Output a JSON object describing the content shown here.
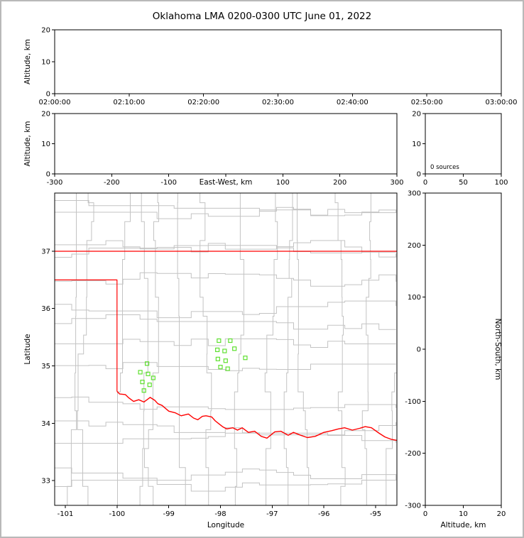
{
  "title": "Oklahoma LMA 0200-0300 UTC June 01, 2022",
  "colors": {
    "state_border": "#ff0000",
    "county_line": "#c3c3c3",
    "station_marker": "#5fe030",
    "axis": "#000000",
    "page_border": "#b9b9b9",
    "background": "#ffffff"
  },
  "chart_data": [
    {
      "id": "time_height",
      "type": "scatter",
      "ylabel": "Altitude, km",
      "ylim": [
        0,
        20
      ],
      "yticks": [
        0,
        10,
        20
      ],
      "xtick_labels": [
        "02:00:00",
        "02:10:00",
        "02:20:00",
        "02:30:00",
        "02:40:00",
        "02:50:00",
        "03:00:00"
      ],
      "points": []
    },
    {
      "id": "ew_height",
      "type": "scatter",
      "xlabel": "East-West, km",
      "ylabel": "Altitude, km",
      "xlim": [
        -300,
        300
      ],
      "xticks": [
        -300,
        -200,
        -100,
        0,
        100,
        200,
        300
      ],
      "xtick_hidden_labels": [
        0
      ],
      "ylim": [
        0,
        20
      ],
      "yticks": [
        0,
        10,
        20
      ],
      "points": []
    },
    {
      "id": "alt_histogram",
      "type": "line",
      "annotation": "0 sources",
      "xlim": [
        0,
        100
      ],
      "xticks": [
        0,
        50,
        100
      ],
      "ylim": [
        0,
        20
      ],
      "yticks": [
        0,
        10,
        20
      ],
      "points": []
    },
    {
      "id": "map",
      "type": "scatter",
      "xlabel": "Longitude",
      "ylabel": "Latitude",
      "xlim": [
        -101.206,
        -94.588
      ],
      "ylim": [
        32.567,
        38.015
      ],
      "xticks": [
        -101,
        -100,
        -99,
        -98,
        -97,
        -96,
        -95
      ],
      "yticks": [
        33,
        34,
        35,
        36,
        37
      ],
      "stations": [
        [
          -98.03,
          35.44
        ],
        [
          -97.81,
          35.44
        ],
        [
          -98.06,
          35.28
        ],
        [
          -97.92,
          35.26
        ],
        [
          -97.73,
          35.3
        ],
        [
          -98.05,
          35.12
        ],
        [
          -97.9,
          35.09
        ],
        [
          -98.0,
          34.98
        ],
        [
          -97.86,
          34.95
        ],
        [
          -97.52,
          35.14
        ],
        [
          -99.42,
          35.04
        ],
        [
          -99.55,
          34.89
        ],
        [
          -99.4,
          34.86
        ],
        [
          -99.3,
          34.79
        ],
        [
          -99.51,
          34.72
        ],
        [
          -99.37,
          34.67
        ],
        [
          -99.48,
          34.57
        ]
      ],
      "state_border": {
        "kansas_line": [
          [
            -101.21,
            37.0
          ],
          [
            -94.58,
            37.0
          ]
        ],
        "panhandle": [
          [
            -101.21,
            36.5
          ],
          [
            -100.0,
            36.5
          ],
          [
            -100.0,
            34.555
          ]
        ],
        "red_river": [
          [
            -100.0,
            34.555
          ],
          [
            -99.95,
            34.51
          ],
          [
            -99.84,
            34.5
          ],
          [
            -99.77,
            34.44
          ],
          [
            -99.68,
            34.38
          ],
          [
            -99.58,
            34.41
          ],
          [
            -99.48,
            34.37
          ],
          [
            -99.36,
            34.45
          ],
          [
            -99.27,
            34.4
          ],
          [
            -99.21,
            34.34
          ],
          [
            -99.13,
            34.31
          ],
          [
            -99.0,
            34.21
          ],
          [
            -98.87,
            34.18
          ],
          [
            -98.76,
            34.13
          ],
          [
            -98.62,
            34.16
          ],
          [
            -98.52,
            34.09
          ],
          [
            -98.44,
            34.06
          ],
          [
            -98.35,
            34.12
          ],
          [
            -98.28,
            34.13
          ],
          [
            -98.17,
            34.11
          ],
          [
            -98.1,
            34.04
          ],
          [
            -98.03,
            33.99
          ],
          [
            -97.96,
            33.94
          ],
          [
            -97.88,
            33.9
          ],
          [
            -97.76,
            33.92
          ],
          [
            -97.67,
            33.88
          ],
          [
            -97.58,
            33.92
          ],
          [
            -97.46,
            33.84
          ],
          [
            -97.34,
            33.86
          ],
          [
            -97.21,
            33.77
          ],
          [
            -97.1,
            33.74
          ],
          [
            -96.95,
            33.85
          ],
          [
            -96.83,
            33.86
          ],
          [
            -96.69,
            33.79
          ],
          [
            -96.59,
            33.84
          ],
          [
            -96.45,
            33.79
          ],
          [
            -96.32,
            33.75
          ],
          [
            -96.17,
            33.77
          ],
          [
            -96.0,
            33.84
          ],
          [
            -95.85,
            33.87
          ],
          [
            -95.72,
            33.9
          ],
          [
            -95.6,
            33.92
          ],
          [
            -95.45,
            33.88
          ],
          [
            -95.31,
            33.91
          ],
          [
            -95.2,
            33.94
          ],
          [
            -95.08,
            33.92
          ],
          [
            -94.94,
            33.83
          ],
          [
            -94.82,
            33.76
          ],
          [
            -94.7,
            33.72
          ],
          [
            -94.59,
            33.7
          ]
        ]
      },
      "county_grid": {
        "seed": 9,
        "lon_step": 0.47,
        "lat_step": 0.42,
        "walk_step": 0.33,
        "jitter": 0.12,
        "jitter_prob": 0.5
      }
    },
    {
      "id": "ns_height",
      "type": "scatter",
      "xlabel": "Altitude, km",
      "ylabel": "North-South, km",
      "xlim": [
        0,
        20
      ],
      "xticks": [
        0,
        10,
        20
      ],
      "ylim": [
        -300,
        300
      ],
      "yticks": [
        300,
        200,
        100,
        0,
        -100,
        -200,
        -300
      ],
      "points": []
    }
  ]
}
